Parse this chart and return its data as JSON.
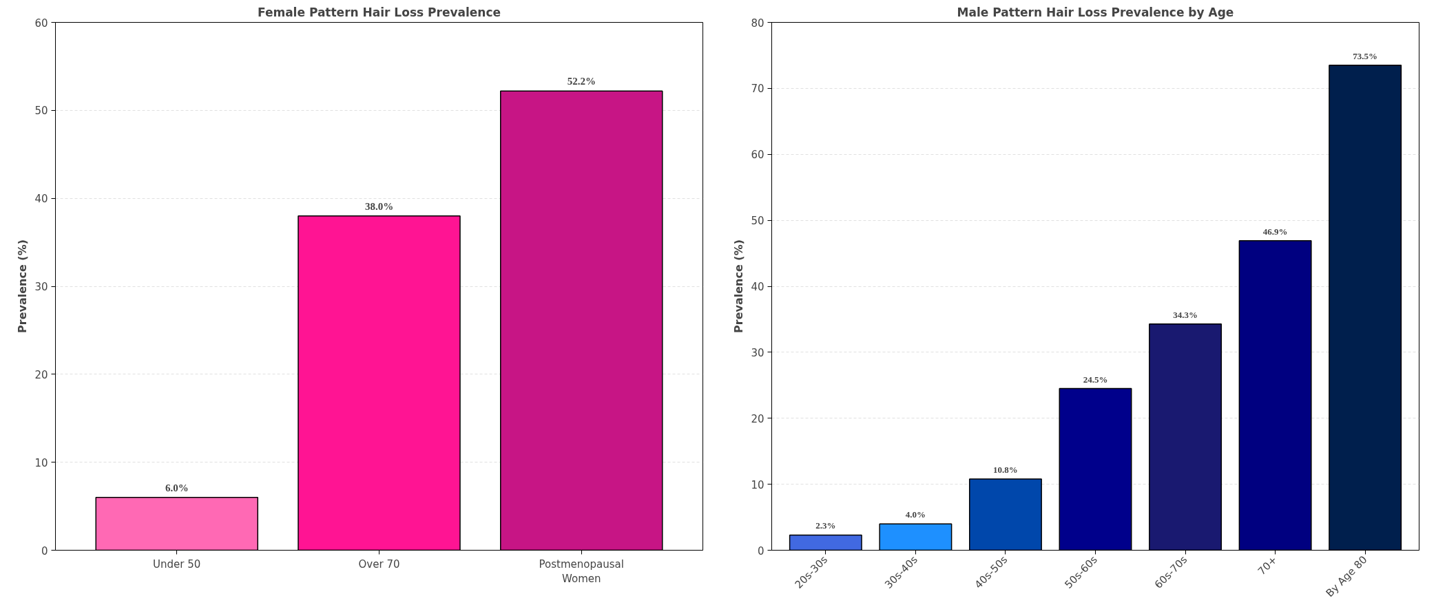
{
  "chart_data": [
    {
      "type": "bar",
      "title": "Female Pattern Hair Loss Prevalence",
      "ylabel": "Prevalence (%)",
      "categories": [
        "Under 50",
        "Over 70",
        "Postmenopausal Women"
      ],
      "values": [
        6.0,
        38.0,
        52.2
      ],
      "colors": [
        "#ff69b4",
        "#ff1493",
        "#c71585"
      ],
      "value_labels": [
        "6.0%",
        "38.0%",
        "52.2%"
      ],
      "ylim": [
        0,
        60
      ],
      "yticks": [
        0,
        10,
        20,
        30,
        40,
        50,
        60
      ],
      "grid": "y"
    },
    {
      "type": "bar",
      "title": "Male Pattern Hair Loss Prevalence by Age",
      "ylabel": "Prevalence (%)",
      "categories": [
        "20s-30s",
        "30s-40s",
        "40s-50s",
        "50s-60s",
        "60s-70s",
        "70+",
        "By Age 80"
      ],
      "values": [
        2.3,
        4.0,
        10.8,
        24.5,
        34.3,
        46.9,
        73.5
      ],
      "colors": [
        "#4169e1",
        "#1e90ff",
        "#0047ab",
        "#00008b",
        "#191970",
        "#000080",
        "#001f4d"
      ],
      "value_labels": [
        "2.3%",
        "4.0%",
        "10.8%",
        "24.5%",
        "34.3%",
        "46.9%",
        "73.5%"
      ],
      "ylim": [
        0,
        80
      ],
      "yticks": [
        0,
        10,
        20,
        30,
        40,
        50,
        60,
        70,
        80
      ],
      "grid": "y"
    }
  ]
}
